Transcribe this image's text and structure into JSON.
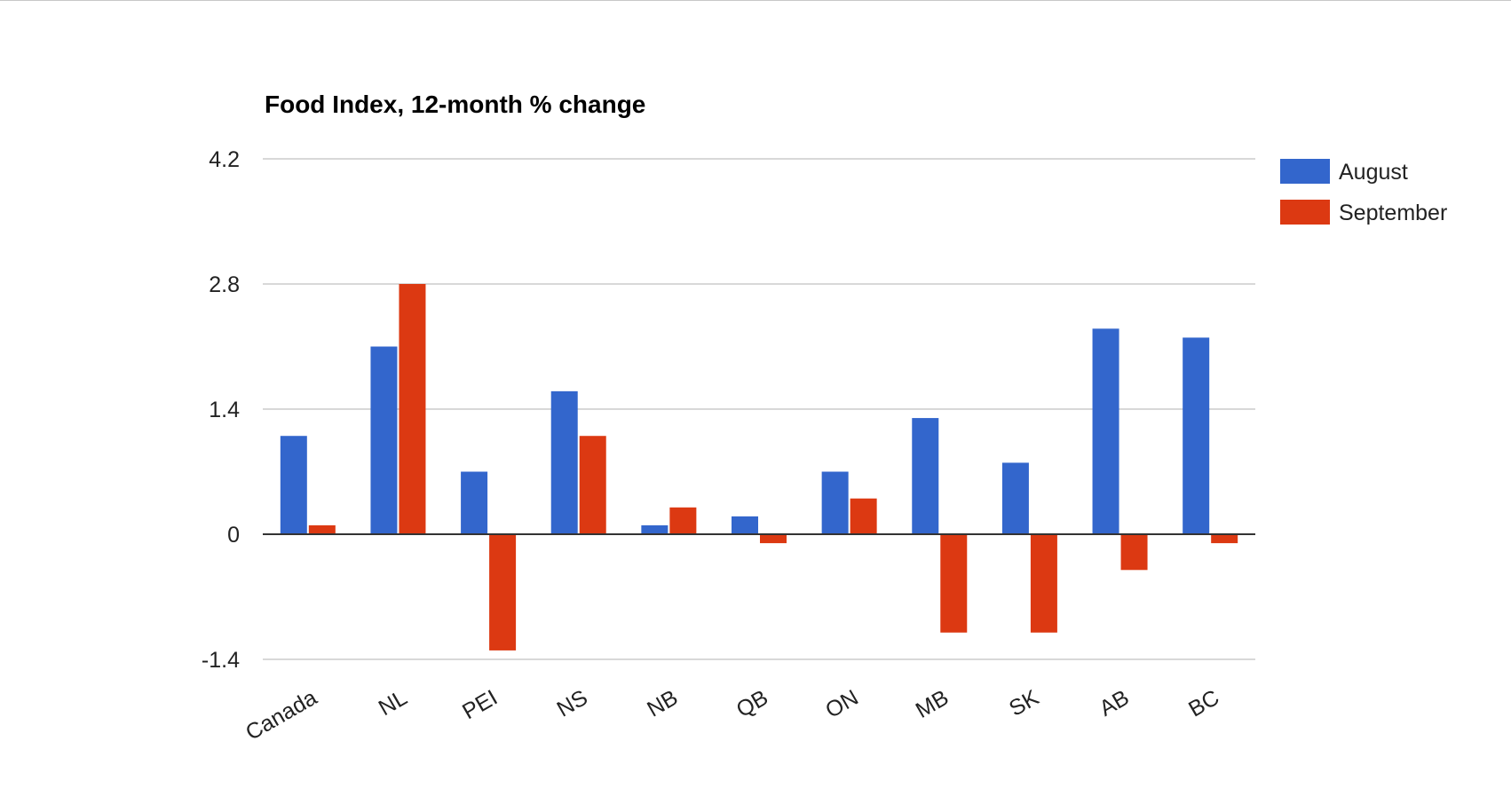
{
  "chart_data": {
    "type": "bar",
    "title": "Food Index, 12-month % change",
    "xlabel": "",
    "ylabel": "",
    "categories": [
      "Canada",
      "NL",
      "PEI",
      "NS",
      "NB",
      "QB",
      "ON",
      "MB",
      "SK",
      "AB",
      "BC"
    ],
    "series": [
      {
        "name": "August",
        "color": "#3366cc",
        "values": [
          1.1,
          2.1,
          0.7,
          1.6,
          0.1,
          0.2,
          0.7,
          1.3,
          0.8,
          2.3,
          2.2
        ]
      },
      {
        "name": "September",
        "color": "#dc3912",
        "values": [
          0.1,
          2.8,
          -1.3,
          1.1,
          0.3,
          -0.1,
          0.4,
          -1.1,
          -1.1,
          -0.4,
          -0.1
        ]
      }
    ],
    "ylim": [
      -1.4,
      4.2
    ],
    "yticks": [
      "4.2",
      "2.8",
      "1.4",
      "0",
      "-1.4"
    ],
    "grid": true,
    "legend_position": "right"
  }
}
